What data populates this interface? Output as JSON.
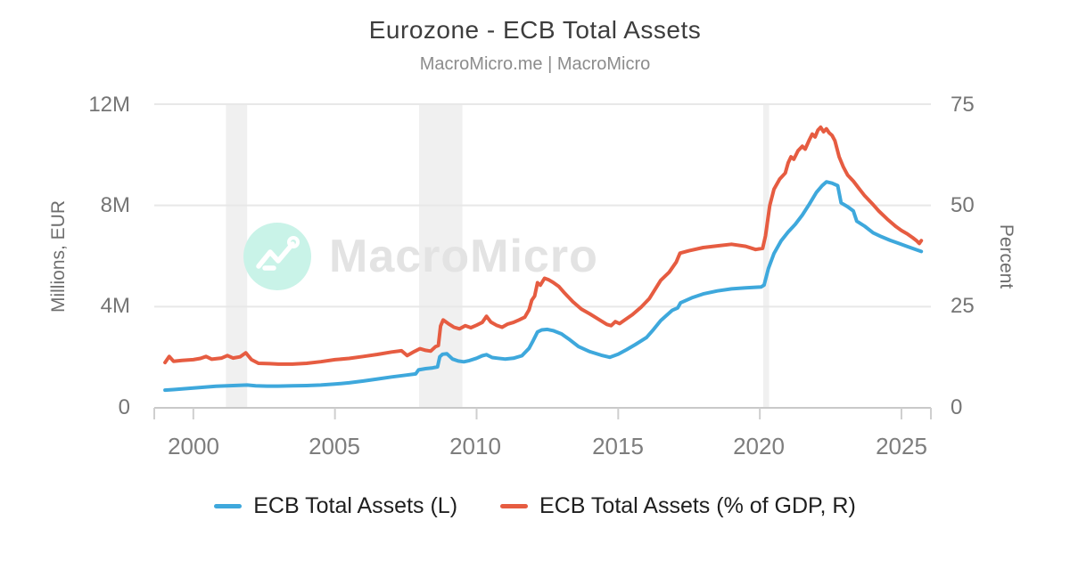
{
  "header": {
    "title": "Eurozone - ECB Total Assets",
    "subtitle": "MacroMicro.me | MacroMicro"
  },
  "watermark": {
    "brand": "MacroMicro",
    "logo_icon": "trend-line-logo",
    "circle_color": "#c9f3e8",
    "text_color": "#e3e3e3"
  },
  "colors": {
    "left_series": "#3ea8dc",
    "right_series": "#e65c41",
    "gridline": "#e8e8e8",
    "axis_line": "#c9c9c9",
    "tick_mark": "#cfcfcf",
    "recession_band": "#f0f0f0"
  },
  "legend": {
    "items": [
      {
        "label": "ECB Total Assets (L)",
        "color": "#3ea8dc"
      },
      {
        "label": "ECB Total Assets (% of GDP, R)",
        "color": "#e65c41"
      }
    ]
  },
  "chart_data": {
    "type": "line",
    "title": "Eurozone - ECB Total Assets",
    "subtitle": "MacroMicro.me | MacroMicro",
    "grid": true,
    "legend_position": "bottom",
    "x_axis": {
      "xlim": [
        1998.62,
        2026.04
      ],
      "tick_years": [
        2000,
        2005,
        2010,
        2015,
        2020,
        2025
      ],
      "tick_labels": [
        "2000",
        "2005",
        "2010",
        "2015",
        "2020",
        "2025"
      ]
    },
    "left_axis": {
      "label": "Millions, EUR",
      "ylim": [
        0,
        12
      ],
      "ticks": [
        0,
        4,
        8,
        12
      ],
      "tick_labels": [
        "0",
        "4M",
        "8M",
        "12M"
      ]
    },
    "right_axis": {
      "label": "Percent",
      "ylim": [
        0,
        75
      ],
      "ticks": [
        0,
        25,
        50,
        75
      ],
      "tick_labels": [
        "0",
        "25",
        "50",
        "75"
      ]
    },
    "recession_bands": [
      [
        2001.15,
        2001.9
      ],
      [
        2007.97,
        2009.5
      ],
      [
        2020.12,
        2020.33
      ]
    ],
    "series": [
      {
        "name": "ECB Total Assets (L)",
        "axis": "left",
        "units": "millions EUR (axis in M = millions of millions)",
        "color": "#3ea8dc",
        "points": [
          [
            1999.0,
            0.7
          ],
          [
            1999.3,
            0.72
          ],
          [
            1999.6,
            0.75
          ],
          [
            2000.0,
            0.78
          ],
          [
            2000.4,
            0.82
          ],
          [
            2000.8,
            0.85
          ],
          [
            2001.2,
            0.87
          ],
          [
            2001.6,
            0.89
          ],
          [
            2001.9,
            0.9
          ],
          [
            2002.2,
            0.87
          ],
          [
            2002.6,
            0.86
          ],
          [
            2003.0,
            0.86
          ],
          [
            2003.5,
            0.87
          ],
          [
            2004.0,
            0.88
          ],
          [
            2004.5,
            0.9
          ],
          [
            2005.0,
            0.94
          ],
          [
            2005.5,
            0.99
          ],
          [
            2006.0,
            1.06
          ],
          [
            2006.5,
            1.14
          ],
          [
            2007.0,
            1.22
          ],
          [
            2007.5,
            1.29
          ],
          [
            2007.85,
            1.34
          ],
          [
            2007.95,
            1.5
          ],
          [
            2008.2,
            1.55
          ],
          [
            2008.45,
            1.58
          ],
          [
            2008.62,
            1.62
          ],
          [
            2008.7,
            2.02
          ],
          [
            2008.8,
            2.12
          ],
          [
            2008.95,
            2.14
          ],
          [
            2009.15,
            1.93
          ],
          [
            2009.35,
            1.85
          ],
          [
            2009.55,
            1.82
          ],
          [
            2009.75,
            1.87
          ],
          [
            2010.0,
            1.96
          ],
          [
            2010.2,
            2.06
          ],
          [
            2010.35,
            2.1
          ],
          [
            2010.55,
            1.99
          ],
          [
            2010.75,
            1.96
          ],
          [
            2011.0,
            1.93
          ],
          [
            2011.3,
            1.96
          ],
          [
            2011.6,
            2.06
          ],
          [
            2011.85,
            2.35
          ],
          [
            2012.0,
            2.66
          ],
          [
            2012.15,
            3.0
          ],
          [
            2012.3,
            3.08
          ],
          [
            2012.5,
            3.1
          ],
          [
            2012.7,
            3.05
          ],
          [
            2013.0,
            2.92
          ],
          [
            2013.3,
            2.68
          ],
          [
            2013.6,
            2.42
          ],
          [
            2014.0,
            2.22
          ],
          [
            2014.4,
            2.08
          ],
          [
            2014.7,
            2.0
          ],
          [
            2015.0,
            2.12
          ],
          [
            2015.3,
            2.3
          ],
          [
            2015.6,
            2.5
          ],
          [
            2016.0,
            2.78
          ],
          [
            2016.25,
            3.1
          ],
          [
            2016.5,
            3.45
          ],
          [
            2016.9,
            3.85
          ],
          [
            2017.1,
            3.95
          ],
          [
            2017.2,
            4.15
          ],
          [
            2017.6,
            4.35
          ],
          [
            2018.0,
            4.5
          ],
          [
            2018.5,
            4.62
          ],
          [
            2019.0,
            4.7
          ],
          [
            2019.5,
            4.74
          ],
          [
            2020.05,
            4.78
          ],
          [
            2020.15,
            4.85
          ],
          [
            2020.3,
            5.5
          ],
          [
            2020.5,
            6.1
          ],
          [
            2020.75,
            6.6
          ],
          [
            2021.0,
            6.95
          ],
          [
            2021.25,
            7.25
          ],
          [
            2021.5,
            7.62
          ],
          [
            2021.75,
            8.05
          ],
          [
            2022.0,
            8.52
          ],
          [
            2022.2,
            8.78
          ],
          [
            2022.35,
            8.93
          ],
          [
            2022.55,
            8.88
          ],
          [
            2022.75,
            8.78
          ],
          [
            2022.87,
            8.1
          ],
          [
            2023.1,
            7.95
          ],
          [
            2023.3,
            7.78
          ],
          [
            2023.42,
            7.38
          ],
          [
            2023.7,
            7.18
          ],
          [
            2024.0,
            6.92
          ],
          [
            2024.3,
            6.76
          ],
          [
            2024.6,
            6.62
          ],
          [
            2024.9,
            6.5
          ],
          [
            2025.2,
            6.38
          ],
          [
            2025.5,
            6.26
          ],
          [
            2025.7,
            6.18
          ]
        ]
      },
      {
        "name": "ECB Total Assets (% of GDP, R)",
        "axis": "right",
        "units": "percent of GDP",
        "color": "#e65c41",
        "points": [
          [
            1999.0,
            11.2
          ],
          [
            1999.15,
            12.7
          ],
          [
            1999.3,
            11.5
          ],
          [
            1999.6,
            11.7
          ],
          [
            2000.0,
            11.9
          ],
          [
            2000.25,
            12.2
          ],
          [
            2000.45,
            12.7
          ],
          [
            2000.65,
            12.0
          ],
          [
            2001.0,
            12.3
          ],
          [
            2001.2,
            12.9
          ],
          [
            2001.4,
            12.3
          ],
          [
            2001.65,
            12.6
          ],
          [
            2001.85,
            13.6
          ],
          [
            2002.05,
            11.9
          ],
          [
            2002.3,
            11.0
          ],
          [
            2002.7,
            10.9
          ],
          [
            2003.0,
            10.8
          ],
          [
            2003.5,
            10.8
          ],
          [
            2004.0,
            11.0
          ],
          [
            2004.5,
            11.4
          ],
          [
            2005.0,
            11.9
          ],
          [
            2005.5,
            12.2
          ],
          [
            2006.0,
            12.7
          ],
          [
            2006.5,
            13.2
          ],
          [
            2007.0,
            13.8
          ],
          [
            2007.35,
            14.1
          ],
          [
            2007.55,
            12.9
          ],
          [
            2007.8,
            13.9
          ],
          [
            2008.0,
            14.6
          ],
          [
            2008.2,
            14.2
          ],
          [
            2008.38,
            14.0
          ],
          [
            2008.55,
            15.1
          ],
          [
            2008.65,
            15.4
          ],
          [
            2008.73,
            20.2
          ],
          [
            2008.82,
            21.7
          ],
          [
            2009.0,
            20.8
          ],
          [
            2009.2,
            19.9
          ],
          [
            2009.4,
            19.5
          ],
          [
            2009.6,
            20.3
          ],
          [
            2009.8,
            19.8
          ],
          [
            2010.0,
            20.4
          ],
          [
            2010.2,
            21.1
          ],
          [
            2010.35,
            22.6
          ],
          [
            2010.5,
            21.2
          ],
          [
            2010.7,
            20.4
          ],
          [
            2010.9,
            19.9
          ],
          [
            2011.1,
            20.7
          ],
          [
            2011.3,
            21.1
          ],
          [
            2011.5,
            21.7
          ],
          [
            2011.7,
            22.4
          ],
          [
            2011.85,
            24.2
          ],
          [
            2011.95,
            26.6
          ],
          [
            2012.05,
            27.6
          ],
          [
            2012.15,
            30.9
          ],
          [
            2012.25,
            30.3
          ],
          [
            2012.4,
            32.0
          ],
          [
            2012.55,
            31.6
          ],
          [
            2012.7,
            31.0
          ],
          [
            2012.9,
            30.0
          ],
          [
            2013.1,
            28.4
          ],
          [
            2013.4,
            26.2
          ],
          [
            2013.7,
            24.4
          ],
          [
            2014.0,
            23.2
          ],
          [
            2014.3,
            21.9
          ],
          [
            2014.6,
            20.6
          ],
          [
            2014.75,
            20.3
          ],
          [
            2014.9,
            21.3
          ],
          [
            2015.05,
            20.8
          ],
          [
            2015.25,
            21.8
          ],
          [
            2015.5,
            23.0
          ],
          [
            2015.8,
            24.8
          ],
          [
            2016.1,
            27.0
          ],
          [
            2016.5,
            31.5
          ],
          [
            2016.8,
            33.5
          ],
          [
            2017.05,
            36.0
          ],
          [
            2017.18,
            38.2
          ],
          [
            2017.5,
            38.8
          ],
          [
            2018.0,
            39.6
          ],
          [
            2018.5,
            40.0
          ],
          [
            2019.0,
            40.4
          ],
          [
            2019.5,
            39.9
          ],
          [
            2019.85,
            39.1
          ],
          [
            2020.1,
            39.4
          ],
          [
            2020.2,
            42.5
          ],
          [
            2020.35,
            50.0
          ],
          [
            2020.5,
            54.0
          ],
          [
            2020.7,
            56.5
          ],
          [
            2020.9,
            58.0
          ],
          [
            2021.0,
            60.5
          ],
          [
            2021.1,
            62.0
          ],
          [
            2021.2,
            61.4
          ],
          [
            2021.35,
            63.5
          ],
          [
            2021.5,
            64.6
          ],
          [
            2021.6,
            63.9
          ],
          [
            2021.75,
            66.2
          ],
          [
            2021.85,
            67.6
          ],
          [
            2021.95,
            66.9
          ],
          [
            2022.05,
            68.6
          ],
          [
            2022.15,
            69.3
          ],
          [
            2022.25,
            68.2
          ],
          [
            2022.35,
            68.9
          ],
          [
            2022.45,
            67.9
          ],
          [
            2022.55,
            67.3
          ],
          [
            2022.65,
            66.0
          ],
          [
            2022.8,
            62.0
          ],
          [
            2022.95,
            59.5
          ],
          [
            2023.1,
            57.5
          ],
          [
            2023.3,
            56.0
          ],
          [
            2023.5,
            54.2
          ],
          [
            2023.7,
            52.4
          ],
          [
            2024.0,
            50.2
          ],
          [
            2024.2,
            48.6
          ],
          [
            2024.5,
            46.6
          ],
          [
            2024.8,
            44.8
          ],
          [
            2025.0,
            43.8
          ],
          [
            2025.2,
            43.0
          ],
          [
            2025.4,
            42.0
          ],
          [
            2025.55,
            41.2
          ],
          [
            2025.63,
            40.6
          ],
          [
            2025.7,
            41.3
          ]
        ]
      }
    ]
  }
}
